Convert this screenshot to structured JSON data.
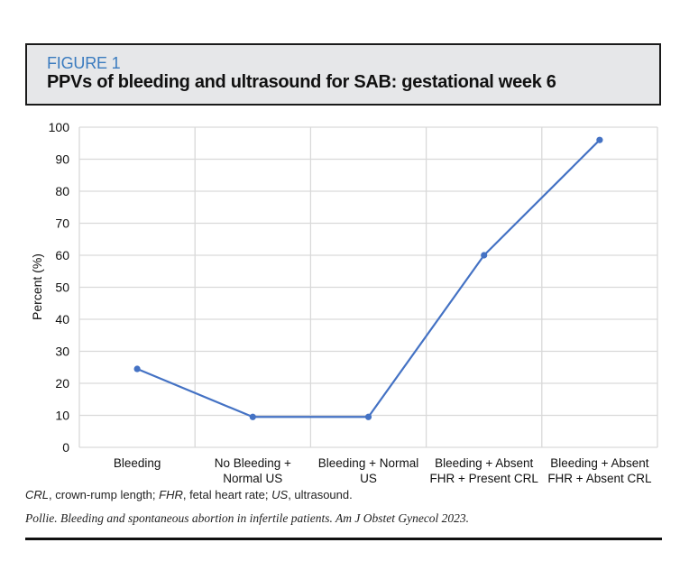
{
  "figure": {
    "label": "FIGURE 1",
    "title": "PPVs of bleeding and ultrasound for SAB: gestational week 6"
  },
  "footnote": {
    "parts": [
      {
        "text": "CRL",
        "italic": true
      },
      {
        "text": ", crown-rump length; ",
        "italic": false
      },
      {
        "text": "FHR",
        "italic": true
      },
      {
        "text": ", fetal heart rate; ",
        "italic": false
      },
      {
        "text": "US",
        "italic": true
      },
      {
        "text": ", ultrasound.",
        "italic": false
      }
    ]
  },
  "citation": "Pollie. Bleeding and spontaneous abortion in infertile patients. Am J Obstet Gynecol 2023.",
  "colors": {
    "series": "#4472c4",
    "figure_label": "#3a7bbf",
    "header_bg": "#e6e7e9",
    "grid": "#d9d9d9"
  },
  "chart_data": {
    "type": "line",
    "title": "PPVs of bleeding and ultrasound for SAB: gestational week 6",
    "xlabel": "",
    "ylabel": "Percent (%)",
    "ylim": [
      0,
      100
    ],
    "yticks": [
      0,
      10,
      20,
      30,
      40,
      50,
      60,
      70,
      80,
      90,
      100
    ],
    "grid": true,
    "legend": "none",
    "categories": [
      [
        "Bleeding"
      ],
      [
        "No Bleeding +",
        "Normal US"
      ],
      [
        "Bleeding + Normal",
        "US"
      ],
      [
        "Bleeding + Absent",
        "FHR + Present CRL"
      ],
      [
        "Bleeding + Absent",
        "FHR + Absent CRL"
      ]
    ],
    "series": [
      {
        "name": "PPV",
        "values": [
          24.5,
          9.5,
          9.5,
          60,
          96
        ]
      }
    ]
  }
}
